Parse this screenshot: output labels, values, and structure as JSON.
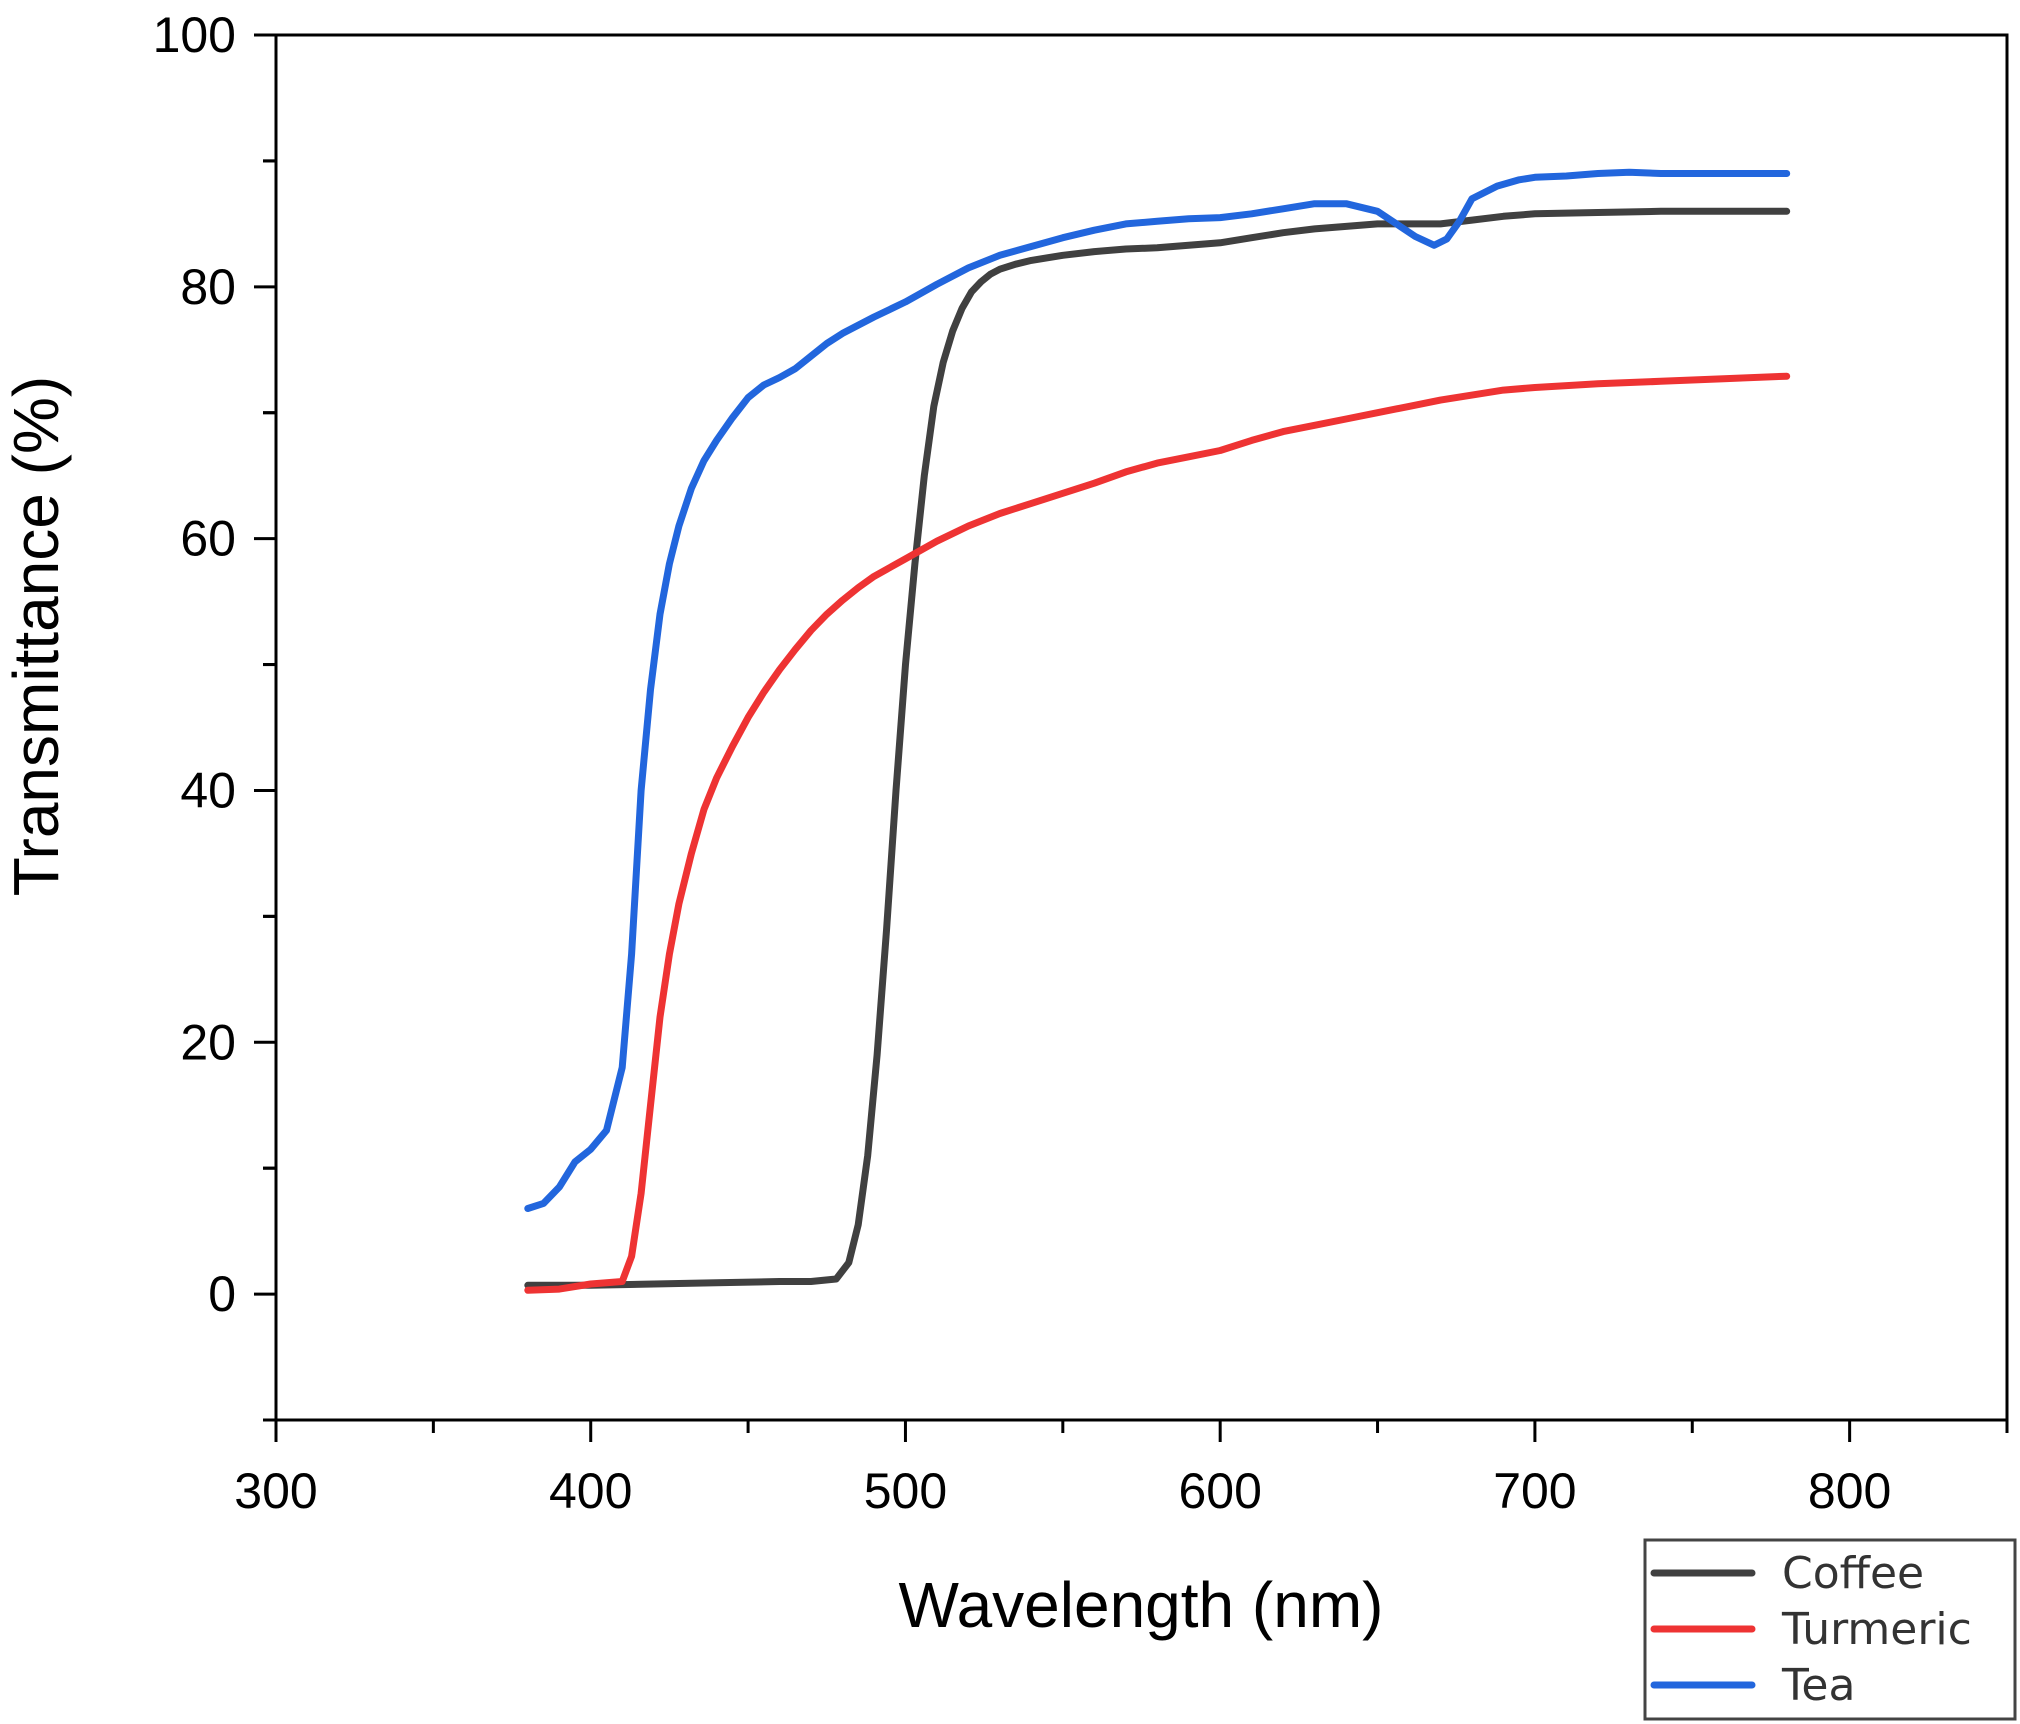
{
  "chart_data": {
    "type": "line",
    "xlabel": "Wavelength (nm)",
    "ylabel": "Transmittance (%)",
    "xlim": [
      300,
      850
    ],
    "ylim": [
      -10,
      100
    ],
    "xticks": [
      300,
      400,
      500,
      600,
      700,
      800
    ],
    "yticks": [
      0,
      20,
      40,
      60,
      80,
      100
    ],
    "grid": false,
    "legend_position": "bottom-right outside",
    "series": [
      {
        "name": "Coffee",
        "color": "#404040",
        "x": [
          380,
          400,
          420,
          440,
          460,
          470,
          478,
          482,
          485,
          488,
          491,
          494,
          497,
          500,
          503,
          506,
          509,
          512,
          515,
          518,
          521,
          524,
          527,
          530,
          535,
          540,
          550,
          560,
          570,
          580,
          590,
          600,
          610,
          620,
          630,
          640,
          650,
          660,
          670,
          680,
          690,
          700,
          720,
          740,
          760,
          780
        ],
        "y": [
          0.7,
          0.7,
          0.8,
          0.9,
          1.0,
          1.0,
          1.2,
          2.5,
          5.5,
          11,
          19,
          29,
          40,
          50,
          58,
          65,
          70.5,
          74,
          76.5,
          78.3,
          79.6,
          80.4,
          81.0,
          81.4,
          81.8,
          82.1,
          82.5,
          82.8,
          83.0,
          83.1,
          83.3,
          83.5,
          83.9,
          84.3,
          84.6,
          84.8,
          85.0,
          85.0,
          85.0,
          85.3,
          85.6,
          85.8,
          85.9,
          86.0,
          86.0,
          86.0
        ]
      },
      {
        "name": "Turmeric",
        "color": "#ee3333",
        "x": [
          380,
          390,
          400,
          410,
          413,
          416,
          419,
          422,
          425,
          428,
          432,
          436,
          440,
          445,
          450,
          455,
          460,
          465,
          470,
          475,
          480,
          485,
          490,
          500,
          510,
          520,
          530,
          540,
          550,
          560,
          570,
          580,
          590,
          600,
          610,
          620,
          630,
          640,
          650,
          660,
          670,
          680,
          690,
          700,
          720,
          740,
          760,
          780
        ],
        "y": [
          0.3,
          0.4,
          0.8,
          1.0,
          3,
          8,
          15,
          22,
          27,
          31,
          35,
          38.5,
          41,
          43.5,
          45.8,
          47.8,
          49.6,
          51.2,
          52.7,
          54.0,
          55.1,
          56.1,
          57.0,
          58.4,
          59.8,
          61.0,
          62.0,
          62.8,
          63.6,
          64.4,
          65.3,
          66.0,
          66.5,
          67.0,
          67.8,
          68.5,
          69.0,
          69.5,
          70.0,
          70.5,
          71.0,
          71.4,
          71.8,
          72.0,
          72.3,
          72.5,
          72.7,
          72.9
        ]
      },
      {
        "name": "Tea",
        "color": "#2266dd",
        "x": [
          380,
          385,
          390,
          395,
          400,
          405,
          410,
          413,
          416,
          419,
          422,
          425,
          428,
          432,
          436,
          440,
          445,
          450,
          455,
          460,
          465,
          470,
          475,
          480,
          490,
          500,
          510,
          520,
          530,
          540,
          550,
          560,
          570,
          580,
          590,
          600,
          610,
          620,
          630,
          640,
          650,
          656,
          662,
          668,
          672,
          676,
          680,
          688,
          695,
          700,
          710,
          720,
          730,
          740,
          760,
          780
        ],
        "y": [
          6.8,
          7.2,
          8.5,
          10.5,
          11.5,
          13,
          18,
          27,
          40,
          48,
          54,
          58,
          61,
          64,
          66.2,
          67.8,
          69.6,
          71.2,
          72.2,
          72.8,
          73.5,
          74.5,
          75.5,
          76.3,
          77.6,
          78.8,
          80.2,
          81.5,
          82.5,
          83.2,
          83.9,
          84.5,
          85.0,
          85.2,
          85.4,
          85.5,
          85.8,
          86.2,
          86.6,
          86.6,
          86.0,
          85.0,
          84.0,
          83.3,
          83.8,
          85.2,
          87.0,
          88.0,
          88.5,
          88.7,
          88.8,
          89.0,
          89.1,
          89.0,
          89.0,
          89.0
        ]
      }
    ]
  }
}
